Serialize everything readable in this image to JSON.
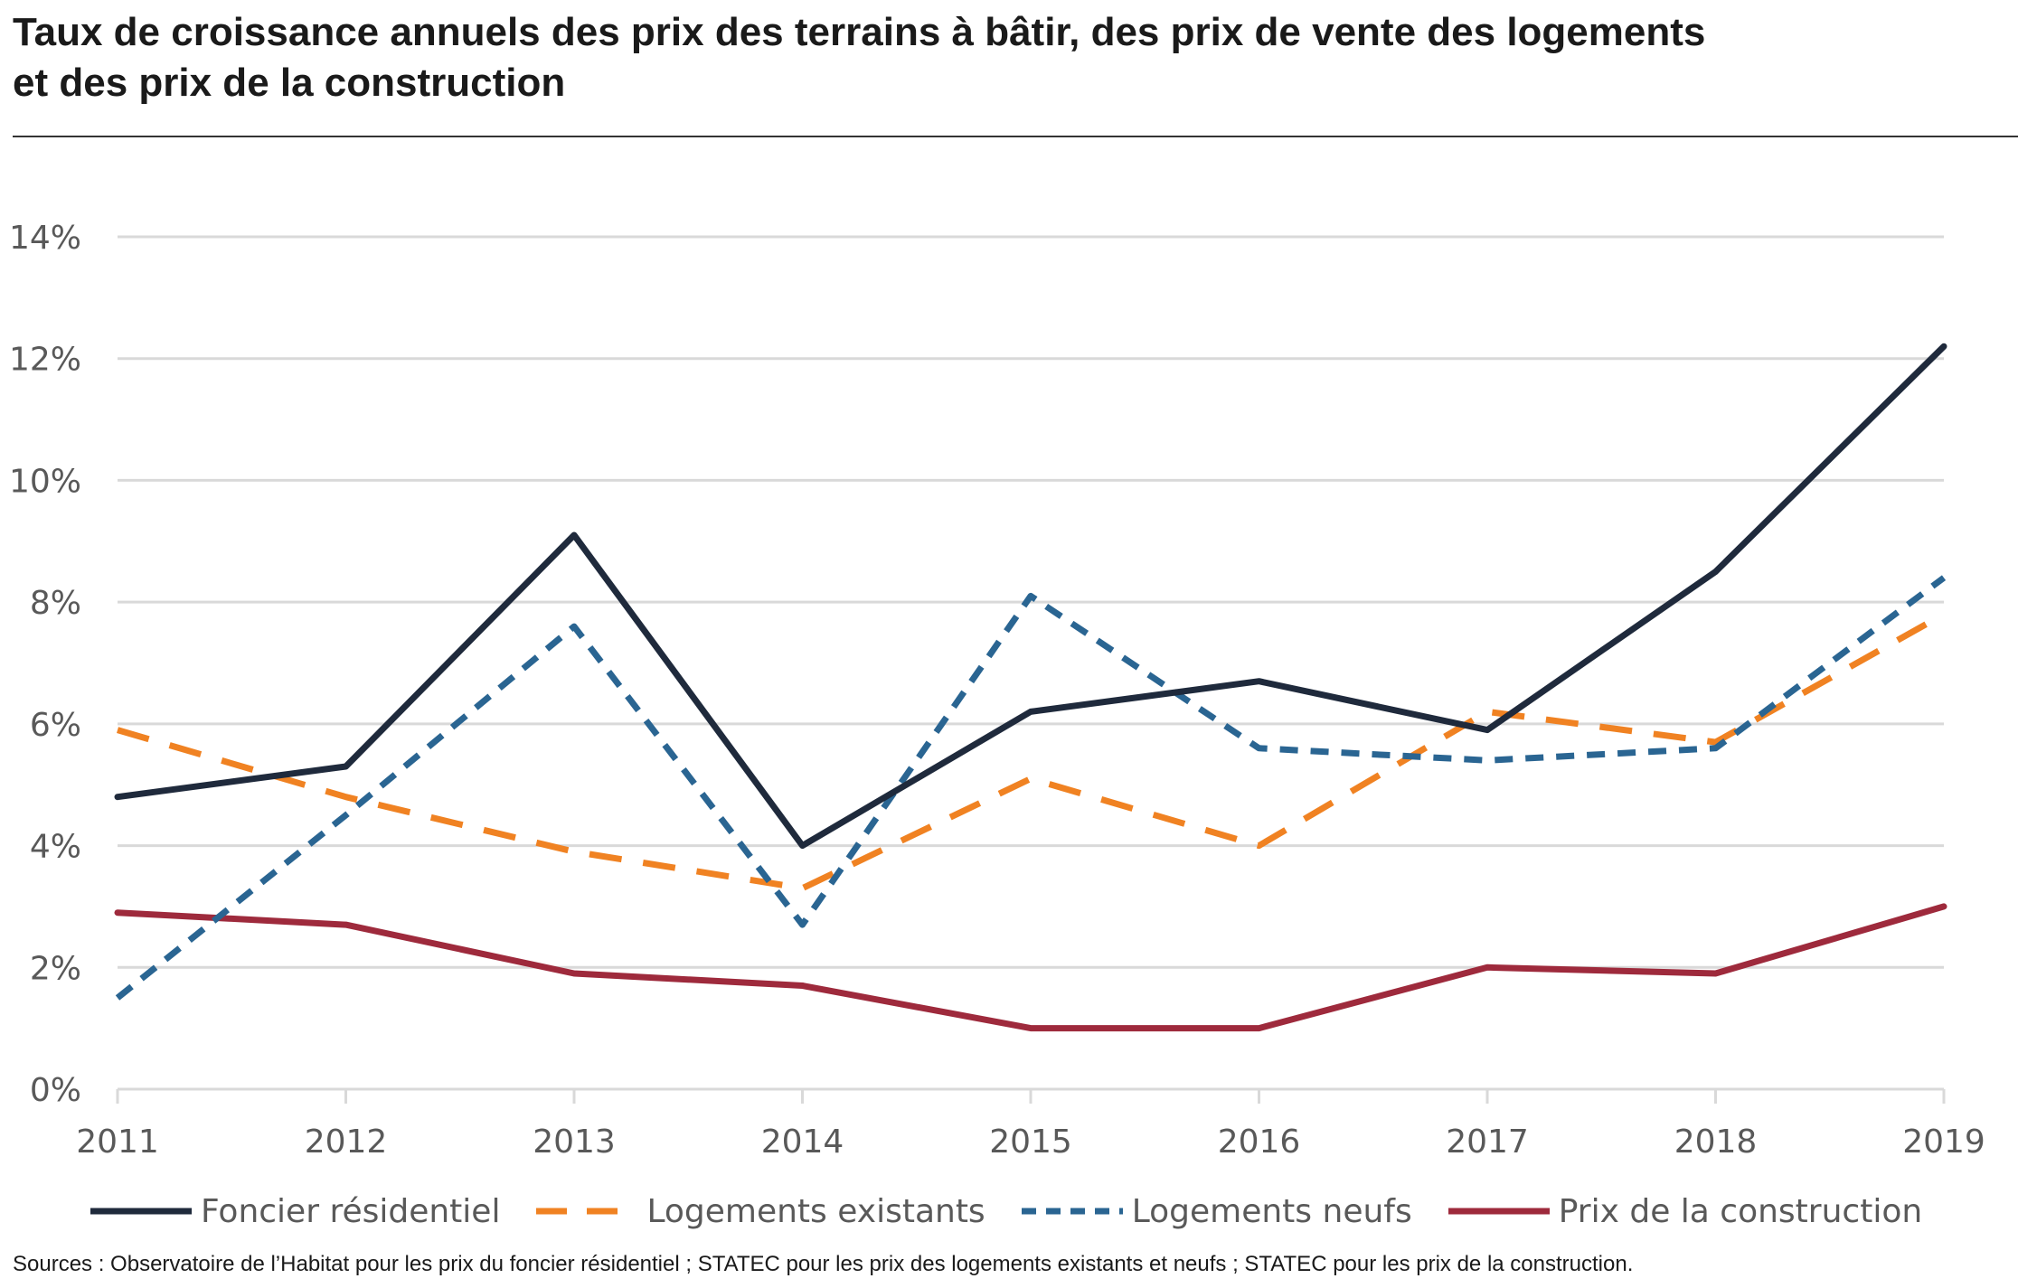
{
  "title_line1": "Taux de croissance annuels des prix des terrains à bâtir, des prix de vente des logements",
  "title_line2": "et des prix de la construction",
  "source": "Sources : Observatoire de l’Habitat pour les prix du foncier résidentiel ; STATEC pour les prix des logements existants et neufs ; STATEC pour les prix de la construction.",
  "chart_data": {
    "type": "line",
    "title": "Taux de croissance annuels des prix des terrains à bâtir, des prix de vente des logements et des prix de la construction",
    "xlabel": "",
    "ylabel": "",
    "x": [
      "2011",
      "2012",
      "2013",
      "2014",
      "2015",
      "2016",
      "2017",
      "2018",
      "2019"
    ],
    "ylim": [
      0,
      14
    ],
    "y_ticks": [
      0,
      2,
      4,
      6,
      8,
      10,
      12,
      14
    ],
    "y_tick_labels": [
      "0%",
      "2%",
      "4%",
      "6%",
      "8%",
      "10%",
      "12%",
      "14%"
    ],
    "grid": "horizontal",
    "legend_position": "bottom",
    "series": [
      {
        "name": "Foncier résidentiel",
        "color": "#1f2a3c",
        "style": "solid",
        "values": [
          4.8,
          5.3,
          9.1,
          4.0,
          6.2,
          6.7,
          5.9,
          8.5,
          12.2
        ]
      },
      {
        "name": "Logements existants",
        "color": "#f08222",
        "style": "dashed",
        "values": [
          5.9,
          4.8,
          3.9,
          3.3,
          5.1,
          4.0,
          6.2,
          5.7,
          7.8
        ]
      },
      {
        "name": "Logements neufs",
        "color": "#2a6592",
        "style": "dashed-short",
        "values": [
          1.5,
          4.5,
          7.6,
          2.7,
          8.1,
          5.6,
          5.4,
          5.6,
          8.4
        ]
      },
      {
        "name": "Prix de la construction",
        "color": "#9e2a3c",
        "style": "solid",
        "values": [
          2.9,
          2.7,
          1.9,
          1.7,
          1.0,
          1.0,
          2.0,
          1.9,
          3.0
        ]
      }
    ]
  }
}
